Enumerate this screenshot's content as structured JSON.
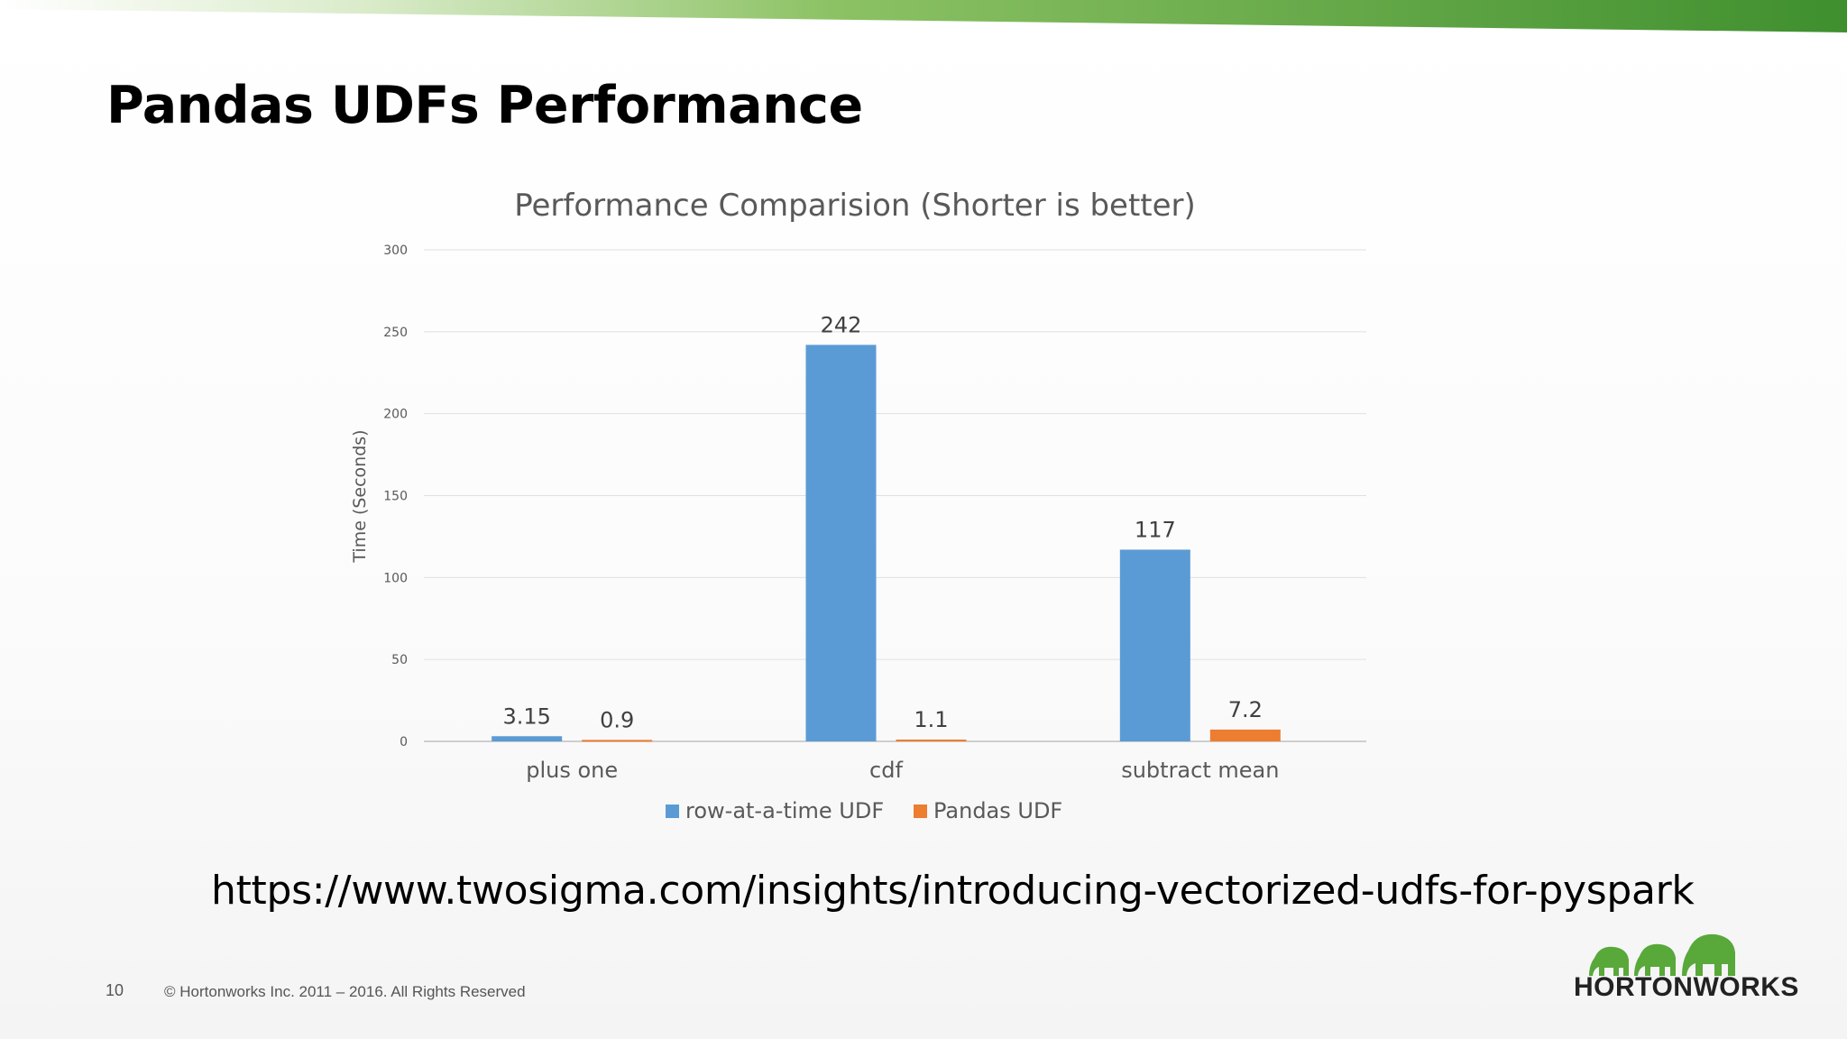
{
  "slide": {
    "title": "Pandas UDFs Performance",
    "link": "https://www.twosigma.com/insights/introducing-vectorized-udfs-for-pyspark",
    "slide_number": "10",
    "copyright": "© Hortonworks Inc. 2011 – 2016. All Rights Reserved",
    "logo_text": "HORTONWORKS",
    "accent_color": "#4a9a33"
  },
  "chart_data": {
    "type": "bar",
    "title": "Performance Comparision (Shorter is better)",
    "ylabel": "Time (Seconds)",
    "xlabel": "",
    "categories": [
      "plus one",
      "cdf",
      "subtract mean"
    ],
    "series": [
      {
        "name": "row-at-a-time UDF",
        "values": [
          3.15,
          242,
          117
        ],
        "labels": [
          "3.15",
          "242",
          "117"
        ],
        "color": "#5b9bd5"
      },
      {
        "name": "Pandas UDF",
        "values": [
          0.9,
          1.1,
          7.2
        ],
        "labels": [
          "0.9",
          "1.1",
          "7.2"
        ],
        "color": "#ed7d31"
      }
    ],
    "ylim": [
      0,
      300
    ],
    "yticks": [
      "0",
      "50",
      "100",
      "150",
      "200",
      "250",
      "300"
    ],
    "grid": true,
    "legend": "bottom"
  }
}
